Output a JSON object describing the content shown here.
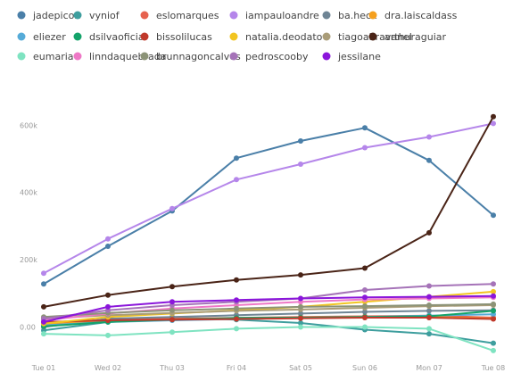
{
  "chart_data": {
    "type": "line",
    "title": "",
    "xlabel": "",
    "ylabel": "",
    "categories": [
      "Tue 01",
      "Wed 02",
      "Thu 03",
      "Fri 04",
      "Sat 05",
      "Sun 06",
      "Mon 07",
      "Tue 08"
    ],
    "yticks": [
      {
        "value": 0,
        "label": "0.00"
      },
      {
        "value": 200000,
        "label": "200k"
      },
      {
        "value": 400000,
        "label": "400k"
      },
      {
        "value": 600000,
        "label": "600k"
      }
    ],
    "ylim": [
      -110000,
      720000
    ],
    "grid": false,
    "legend_position": "top-left",
    "series": [
      {
        "name": "jadepicon",
        "color": "#4a7fa8",
        "values": [
          128000,
          240000,
          345000,
          502000,
          553000,
          592000,
          495000,
          332000
        ]
      },
      {
        "name": "vyniof",
        "color": "#3e9e9e",
        "values": [
          -10000,
          15000,
          28000,
          22000,
          12000,
          -8000,
          -20000,
          -48000
        ]
      },
      {
        "name": "eslomarques",
        "color": "#e6624f",
        "values": [
          12000,
          22000,
          25000,
          27000,
          30000,
          32000,
          34000,
          28000
        ]
      },
      {
        "name": "iampauloandre",
        "color": "#b586ea",
        "values": [
          160000,
          262000,
          352000,
          438000,
          484000,
          533000,
          565000,
          605000
        ]
      },
      {
        "name": "ba.heck",
        "color": "#6f8595",
        "values": [
          0,
          25000,
          30000,
          35000,
          40000,
          45000,
          48000,
          50000
        ]
      },
      {
        "name": "dra.laiscaldass",
        "color": "#f5a01e",
        "values": [
          8000,
          18000,
          22000,
          25000,
          28000,
          30000,
          30000,
          25000
        ]
      },
      {
        "name": "eliezer",
        "color": "#56abd8",
        "values": [
          5000,
          15000,
          20000,
          24000,
          27000,
          30000,
          34000,
          38000
        ]
      },
      {
        "name": "dsilvaoficial",
        "color": "#14a36a",
        "values": [
          2000,
          15000,
          22000,
          27000,
          28000,
          30000,
          32000,
          48000
        ]
      },
      {
        "name": "bissolilucas",
        "color": "#c0392b",
        "values": [
          15000,
          20000,
          22000,
          24000,
          26000,
          28000,
          28000,
          24000
        ]
      },
      {
        "name": "natalia.deodato",
        "color": "#f2c521",
        "values": [
          10000,
          30000,
          40000,
          50000,
          60000,
          75000,
          90000,
          105000
        ]
      },
      {
        "name": "tiagoabravanel",
        "color": "#a99c78",
        "values": [
          25000,
          35000,
          42000,
          48000,
          52000,
          57000,
          62000,
          65000
        ]
      },
      {
        "name": "arthuraguiar",
        "color": "#4a2417",
        "values": [
          60000,
          95000,
          120000,
          140000,
          155000,
          175000,
          280000,
          625000
        ]
      },
      {
        "name": "eumaria",
        "color": "#7fe3c1",
        "values": [
          -20000,
          -25000,
          -15000,
          -5000,
          0,
          0,
          -5000,
          -70000
        ]
      },
      {
        "name": "linndaquebrada",
        "color": "#ee78c6",
        "values": [
          20000,
          40000,
          55000,
          65000,
          75000,
          82000,
          85000,
          88000
        ]
      },
      {
        "name": "brunnagoncalves",
        "color": "#8c9377",
        "values": [
          30000,
          42000,
          50000,
          55000,
          60000,
          62000,
          65000,
          68000
        ]
      },
      {
        "name": "pedroscooby",
        "color": "#a573b8",
        "values": [
          25000,
          50000,
          65000,
          75000,
          85000,
          110000,
          122000,
          128000
        ]
      },
      {
        "name": "jessilane",
        "color": "#8b16db",
        "values": [
          15000,
          60000,
          75000,
          80000,
          85000,
          88000,
          90000,
          92000
        ]
      }
    ]
  }
}
